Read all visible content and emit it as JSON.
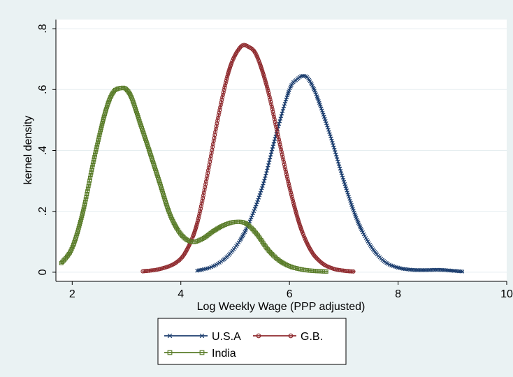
{
  "chart_data": {
    "type": "line",
    "title": "",
    "xlabel": "Log Weekly Wage (PPP adjusted)",
    "ylabel": "kernel density",
    "xlim": [
      1.7,
      10
    ],
    "ylim": [
      -0.03,
      0.83
    ],
    "xticks": [
      2,
      4,
      6,
      8,
      10
    ],
    "xtick_labels": [
      "2",
      "4",
      "6",
      "8",
      "10"
    ],
    "yticks": [
      0,
      0.2,
      0.4,
      0.6,
      0.8
    ],
    "ytick_labels": [
      "0",
      ".2",
      ".4",
      ".6",
      ".8"
    ],
    "grid": "horizontal",
    "legend_position": "bottom",
    "series": [
      {
        "name": "U.S.A",
        "color": "#1b3d6e",
        "marker": "x",
        "x": [
          4.3,
          4.6,
          4.9,
          5.2,
          5.5,
          5.75,
          6.0,
          6.15,
          6.25,
          6.35,
          6.5,
          6.75,
          7.0,
          7.25,
          7.5,
          7.75,
          8.0,
          8.25,
          8.5,
          8.75,
          9.0,
          9.2
        ],
        "y": [
          0.005,
          0.02,
          0.06,
          0.14,
          0.28,
          0.45,
          0.6,
          0.635,
          0.645,
          0.635,
          0.58,
          0.45,
          0.3,
          0.17,
          0.085,
          0.035,
          0.015,
          0.008,
          0.007,
          0.008,
          0.005,
          0.002
        ]
      },
      {
        "name": "G.B.",
        "color": "#8f2a2e",
        "marker": "circle",
        "x": [
          3.3,
          3.6,
          3.9,
          4.1,
          4.3,
          4.5,
          4.7,
          4.9,
          5.1,
          5.25,
          5.4,
          5.6,
          5.8,
          6.0,
          6.2,
          6.4,
          6.6,
          6.8,
          7.0,
          7.2
        ],
        "y": [
          0.003,
          0.01,
          0.03,
          0.07,
          0.16,
          0.33,
          0.52,
          0.67,
          0.74,
          0.74,
          0.71,
          0.6,
          0.44,
          0.28,
          0.15,
          0.07,
          0.03,
          0.012,
          0.005,
          0.002
        ]
      },
      {
        "name": "India",
        "color": "#5a7d2a",
        "marker": "square",
        "x": [
          1.8,
          2.0,
          2.2,
          2.4,
          2.6,
          2.75,
          2.9,
          3.0,
          3.1,
          3.25,
          3.4,
          3.6,
          3.8,
          4.0,
          4.2,
          4.4,
          4.6,
          4.8,
          5.0,
          5.2,
          5.4,
          5.6,
          5.8,
          6.0,
          6.2,
          6.4,
          6.7
        ],
        "y": [
          0.03,
          0.08,
          0.2,
          0.37,
          0.52,
          0.59,
          0.605,
          0.6,
          0.57,
          0.49,
          0.41,
          0.3,
          0.19,
          0.125,
          0.1,
          0.11,
          0.135,
          0.155,
          0.165,
          0.16,
          0.125,
          0.075,
          0.04,
          0.02,
          0.01,
          0.005,
          0.002
        ]
      }
    ]
  }
}
